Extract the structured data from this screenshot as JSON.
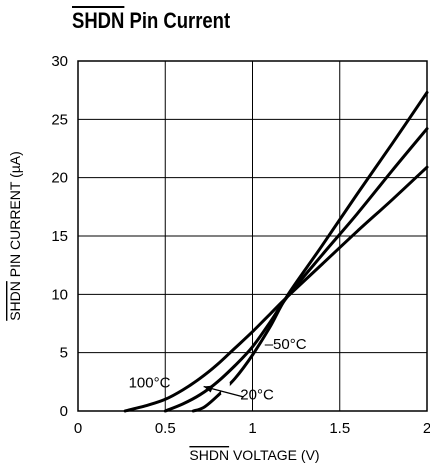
{
  "title": {
    "overlined": "SHDN",
    "rest": " Pin Current"
  },
  "chart_data": {
    "type": "line",
    "title": "SHDN Pin Current",
    "xlabel_overlined": "SHDN",
    "xlabel_rest": " VOLTAGE (V)",
    "ylabel_overlined": "SHDN",
    "ylabel_rest": " PIN CURRENT (µA)",
    "xlim": [
      0,
      2
    ],
    "ylim": [
      0,
      30
    ],
    "xticks": [
      "0",
      "0.5",
      "1",
      "1.5",
      "2"
    ],
    "yticks": [
      "0",
      "5",
      "10",
      "15",
      "20",
      "25",
      "30"
    ],
    "grid": true,
    "series": [
      {
        "name": "100°C",
        "x": [
          0.27,
          0.4,
          0.5,
          0.6,
          0.7,
          0.8,
          0.9,
          1.0,
          1.1,
          1.2,
          1.4,
          1.6,
          1.8,
          2.0
        ],
        "y": [
          0,
          0.5,
          1.0,
          1.8,
          2.8,
          4.0,
          5.4,
          6.8,
          8.3,
          9.8,
          12.6,
          15.4,
          18.1,
          20.9
        ]
      },
      {
        "name": "20°C",
        "x": [
          0.5,
          0.6,
          0.7,
          0.8,
          0.9,
          1.0,
          1.1,
          1.2,
          1.4,
          1.6,
          1.8,
          2.0
        ],
        "y": [
          0,
          0.6,
          1.4,
          2.5,
          3.9,
          5.5,
          7.6,
          9.8,
          13.4,
          16.9,
          20.6,
          24.2
        ]
      },
      {
        "name": "–50°C",
        "x": [
          0.66,
          0.72,
          0.8,
          0.9,
          1.0,
          1.1,
          1.2,
          1.4,
          1.6,
          1.8,
          2.0
        ],
        "y": [
          0,
          0.3,
          1.3,
          2.8,
          4.8,
          7.2,
          9.9,
          14.2,
          18.6,
          22.9,
          27.3
        ]
      }
    ],
    "annotations": [
      "100°C",
      "20°C",
      "–50°C"
    ]
  }
}
